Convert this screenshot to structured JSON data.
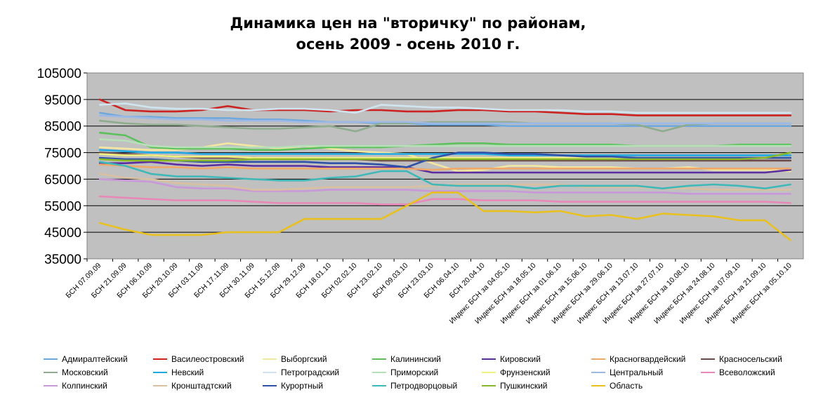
{
  "chart_data": {
    "type": "line",
    "title_line1": "Динамика цен на \"вторичку\" по районам,",
    "title_line2": "осень 2009 - осень 2010 г.",
    "xlabel": "",
    "ylabel": "",
    "ylim": [
      35000,
      105000
    ],
    "yticks": [
      "105000",
      "95000",
      "85000",
      "75000",
      "65000",
      "55000",
      "45000",
      "35000"
    ],
    "grid": true,
    "legend_position": "bottom",
    "categories": [
      "БСН 07.09.09",
      "БСН 21.09.09",
      "БСН 06.10.09",
      "БСН 20.10.09",
      "БСН 03.11.09",
      "БСН 17.11.09",
      "БСН 30.11.09",
      "БСН 15.12.09",
      "БСН 29.12.09",
      "БСН 18.01.10",
      "БСН 02.02.10",
      "БСН 23.02.10",
      "БСН 09.03.10",
      "БСН 23.03.10",
      "БСН 06.04.10",
      "БСН 20.04.10",
      "Индекс БСН за 04.05.10",
      "Индекс БСН за 18.05.10",
      "Индекс БСН за 01.06.10",
      "Индекс БСН за 15.06.10",
      "Индекс БСН за 29.06.10",
      "Индекс БСН за 13.07.10",
      "Индекс БСН за 27.07.10",
      "Индекс БСН за 10.08.10",
      "Индекс БСН за 24.08.10",
      "Индекс БСН за 07.09.10",
      "Индекс БСН за 21.09.10",
      "Индекс БСН за 05.10.10"
    ],
    "series": [
      {
        "name": "Адмиралтейский",
        "color": "#6fa8dc",
        "values": [
          90000,
          88500,
          88500,
          88000,
          88000,
          88000,
          87500,
          87500,
          87000,
          86500,
          86500,
          86000,
          86000,
          85500,
          85500,
          85500,
          85000,
          85000,
          85000,
          85000,
          85000,
          85000,
          85000,
          85000,
          85000,
          85000,
          85000,
          85000
        ]
      },
      {
        "name": "Василеостровский",
        "color": "#cc2222",
        "values": [
          95000,
          91000,
          90500,
          90500,
          91000,
          92500,
          91000,
          91000,
          91000,
          90500,
          91000,
          91000,
          90500,
          90500,
          91000,
          91000,
          90500,
          90500,
          90000,
          89500,
          89500,
          89000,
          89000,
          89000,
          89000,
          89000,
          89000,
          89000
        ]
      },
      {
        "name": "Выборгский",
        "color": "#f4e7a1",
        "values": [
          77000,
          76500,
          76000,
          76000,
          77000,
          78500,
          77500,
          76500,
          77500,
          76500,
          75500,
          75000,
          74500,
          71000,
          68000,
          68500,
          70000,
          70000,
          69500,
          69500,
          69500,
          69000,
          69000,
          69500,
          68500,
          68500,
          68500,
          68000
        ]
      },
      {
        "name": "Калининский",
        "color": "#5bc25b",
        "values": [
          82500,
          81500,
          77000,
          76500,
          76500,
          76500,
          76000,
          76000,
          76500,
          77000,
          77000,
          77000,
          77500,
          78000,
          78500,
          78500,
          78000,
          78000,
          78000,
          78000,
          78000,
          77500,
          77500,
          77500,
          77500,
          78000,
          78000,
          78000
        ]
      },
      {
        "name": "Кировский",
        "color": "#5b2d9e",
        "values": [
          71000,
          71000,
          71500,
          70500,
          70000,
          70500,
          70000,
          70000,
          70000,
          69500,
          69500,
          69500,
          69500,
          67500,
          67500,
          67500,
          67500,
          67500,
          67500,
          67500,
          67500,
          67500,
          67500,
          67500,
          67500,
          67500,
          67500,
          68500
        ]
      },
      {
        "name": "Красногвардейский",
        "color": "#f0a868",
        "values": [
          70500,
          70000,
          69500,
          69500,
          69000,
          69500,
          69000,
          69000,
          69000,
          69000,
          69000,
          69000,
          69000,
          68500,
          69000,
          69000,
          69000,
          69000,
          69000,
          69000,
          69000,
          69000,
          69000,
          69000,
          69000,
          69000,
          69000,
          69000
        ]
      },
      {
        "name": "Красносельский",
        "color": "#6e4a4a",
        "values": [
          75000,
          74500,
          74000,
          73500,
          73000,
          73000,
          73000,
          72500,
          72500,
          72500,
          72500,
          72000,
          72000,
          72000,
          72000,
          72000,
          72000,
          72000,
          72000,
          72000,
          72000,
          72000,
          72000,
          72000,
          72000,
          72000,
          72000,
          72000
        ]
      },
      {
        "name": "Московский",
        "color": "#8fac8f",
        "values": [
          87000,
          86000,
          85500,
          85500,
          85000,
          84500,
          84000,
          84000,
          84500,
          85000,
          83000,
          86000,
          86000,
          86500,
          86500,
          86500,
          86500,
          86000,
          86000,
          86000,
          86000,
          85500,
          83000,
          85500,
          86000,
          86000,
          86000,
          86000
        ]
      },
      {
        "name": "Невский",
        "color": "#22a8e0",
        "values": [
          76000,
          75500,
          75000,
          75000,
          74500,
          74500,
          74500,
          74500,
          74500,
          74500,
          74500,
          74500,
          74500,
          74500,
          74500,
          74500,
          74000,
          74000,
          74000,
          74000,
          74000,
          74000,
          74000,
          74000,
          74000,
          74000,
          74000,
          74000
        ]
      },
      {
        "name": "Петроградский",
        "color": "#d0e4f0",
        "values": [
          93000,
          93500,
          92000,
          91500,
          91500,
          91000,
          91000,
          91500,
          91500,
          91000,
          90000,
          93000,
          92500,
          92000,
          92000,
          91500,
          91000,
          91000,
          91000,
          90500,
          90500,
          90000,
          90000,
          90000,
          90000,
          90000,
          90000,
          90000
        ]
      },
      {
        "name": "Приморский",
        "color": "#b8e0b8",
        "values": [
          80000,
          79500,
          77500,
          77000,
          77000,
          77000,
          77000,
          77000,
          77500,
          77500,
          77500,
          77500,
          77500,
          77500,
          77500,
          77500,
          77500,
          77500,
          77500,
          77500,
          77500,
          77500,
          77500,
          77500,
          77500,
          77500,
          77500,
          77500
        ]
      },
      {
        "name": "Фрунзенский",
        "color": "#f0f080",
        "values": [
          74500,
          74000,
          74000,
          73500,
          73500,
          73500,
          73000,
          73000,
          73000,
          73000,
          73000,
          73000,
          73000,
          73000,
          73000,
          73000,
          73000,
          73000,
          73000,
          73000,
          73000,
          73000,
          73000,
          73000,
          73000,
          73000,
          73000,
          73000
        ]
      },
      {
        "name": "Центральный",
        "color": "#9cb8e6",
        "values": [
          89000,
          88500,
          88000,
          87500,
          87500,
          87000,
          87000,
          87000,
          86500,
          86500,
          86500,
          86500,
          86500,
          86000,
          86000,
          86000,
          86000,
          86000,
          86000,
          86000,
          86000,
          86000,
          86000,
          86000,
          86000,
          86000,
          86000,
          86000
        ]
      },
      {
        "name": "Всеволожский",
        "color": "#e888b8",
        "values": [
          58500,
          58000,
          57500,
          57000,
          57000,
          57000,
          56500,
          56000,
          56000,
          56000,
          56000,
          55500,
          55500,
          57500,
          57500,
          57000,
          57000,
          57000,
          56500,
          56500,
          56500,
          56500,
          56500,
          56500,
          56500,
          56500,
          56500,
          56000
        ]
      },
      {
        "name": "Колпинский",
        "color": "#c898d8",
        "values": [
          65000,
          64500,
          64000,
          62000,
          61500,
          61500,
          60500,
          60500,
          60500,
          61000,
          61000,
          61000,
          61000,
          60500,
          60500,
          60500,
          60500,
          60000,
          60000,
          60000,
          60000,
          60000,
          60000,
          59500,
          59500,
          59500,
          59500,
          59500
        ]
      },
      {
        "name": "Кронштадтский",
        "color": "#d8c0a0",
        "values": [
          67000,
          65500,
          65000,
          63500,
          63000,
          62500,
          61000,
          61000,
          61500,
          62000,
          62000,
          62000,
          62000,
          62500,
          63000,
          63000,
          63000,
          63000,
          63000,
          62000,
          62000,
          62000,
          61500,
          61500,
          61000,
          61000,
          61000,
          61000
        ]
      },
      {
        "name": "Курортный",
        "color": "#2f52a8",
        "values": [
          73000,
          72500,
          72500,
          72000,
          71500,
          71500,
          71500,
          71500,
          71500,
          71000,
          71000,
          70500,
          69500,
          73000,
          75000,
          75000,
          74500,
          74500,
          74000,
          73500,
          73500,
          73000,
          73000,
          73000,
          73000,
          73000,
          73000,
          73000
        ]
      },
      {
        "name": "Петродворцовый",
        "color": "#40b8b8",
        "values": [
          71500,
          70000,
          67000,
          66000,
          66000,
          65500,
          65000,
          64500,
          64500,
          65500,
          66000,
          68000,
          68000,
          63000,
          62500,
          62500,
          62500,
          61500,
          62500,
          62500,
          62500,
          62500,
          61500,
          62500,
          63000,
          62500,
          61500,
          63000
        ]
      },
      {
        "name": "Пушкинский",
        "color": "#88b828",
        "values": [
          72500,
          72000,
          72000,
          72000,
          72000,
          72000,
          72500,
          72500,
          72500,
          72500,
          72500,
          72500,
          72500,
          72500,
          72500,
          72500,
          72500,
          72500,
          72500,
          72500,
          72500,
          72500,
          72500,
          72500,
          72500,
          72500,
          73000,
          75000
        ]
      },
      {
        "name": "Область",
        "color": "#e8c020",
        "values": [
          48500,
          46000,
          44000,
          44000,
          44000,
          45000,
          45000,
          45000,
          50000,
          50000,
          50000,
          50000,
          55000,
          60000,
          60000,
          53000,
          53000,
          52500,
          53000,
          51000,
          51500,
          50000,
          52000,
          51500,
          51000,
          49500,
          49500,
          42000
        ]
      }
    ]
  }
}
